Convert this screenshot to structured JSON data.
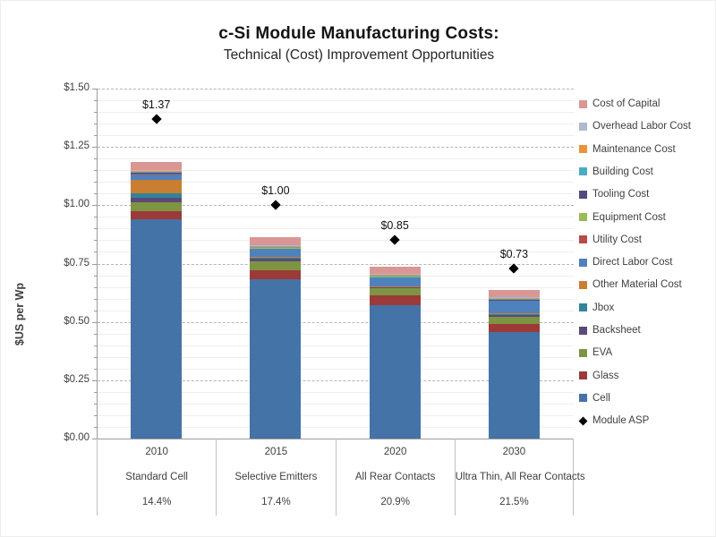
{
  "title": "c-Si Module Manufacturing Costs:",
  "subtitle": "Technical (Cost) Improvement Opportunities",
  "y_axis": {
    "title": "$US per Wp",
    "tick_labels": [
      "$0.00",
      "$0.25",
      "$0.50",
      "$0.75",
      "$1.00",
      "$1.25",
      "$1.50"
    ],
    "min": 0,
    "max": 1.5,
    "major_step": 0.25,
    "minor_step": 0.05
  },
  "chart_data": {
    "type": "bar",
    "subtype": "stacked-columns-with-diamond-markers",
    "title": "c-Si Module Manufacturing Costs: Technical (Cost) Improvement Opportunities",
    "ylabel": "$US per Wp",
    "ylim": [
      0,
      1.5
    ],
    "grid": {
      "major": "dashed",
      "minor": "solid",
      "legend_position": "right"
    },
    "categories": [
      {
        "year": "2010",
        "technology": "Standard Cell",
        "efficiency": "14.4%"
      },
      {
        "year": "2015",
        "technology": "Selective Emitters",
        "efficiency": "17.4%"
      },
      {
        "year": "2020",
        "technology": "All Rear Contacts",
        "efficiency": "20.9%"
      },
      {
        "year": "2030",
        "technology": "Ultra Thin, All Rear Contacts",
        "efficiency": "21.5%"
      }
    ],
    "series_bottom_to_top": [
      {
        "name": "Cell",
        "color": "#4473A7",
        "values": [
          0.939,
          0.683,
          0.57,
          0.457
        ]
      },
      {
        "name": "Glass",
        "color": "#9C3A38",
        "values": [
          0.037,
          0.038,
          0.042,
          0.035
        ]
      },
      {
        "name": "EVA",
        "color": "#7D9442",
        "values": [
          0.037,
          0.038,
          0.031,
          0.031
        ]
      },
      {
        "name": "Backsheet",
        "color": "#5B4A77",
        "values": [
          0.018,
          0.012,
          0.005,
          0.008
        ]
      },
      {
        "name": "Jbox",
        "color": "#31849B",
        "values": [
          0.019,
          0.004,
          0.003,
          0.004
        ]
      },
      {
        "name": "Other Material Cost",
        "color": "#C97E32",
        "values": [
          0.058,
          0.004,
          0.003,
          0.003
        ]
      },
      {
        "name": "Direct Labor Cost",
        "color": "#4F81BD",
        "values": [
          0.027,
          0.035,
          0.038,
          0.054
        ]
      },
      {
        "name": "Utility Cost",
        "color": "#B94A48",
        "values": [
          0.002,
          0.002,
          0.002,
          0.001
        ]
      },
      {
        "name": "Equipment Cost",
        "color": "#9ABB59",
        "values": [
          0.002,
          0.002,
          0.002,
          0.001
        ]
      },
      {
        "name": "Tooling Cost",
        "color": "#514A7D",
        "values": [
          0.002,
          0.002,
          0.002,
          0.002
        ]
      },
      {
        "name": "Building Cost",
        "color": "#4BACC6",
        "values": [
          0.002,
          0.002,
          0.002,
          0.003
        ]
      },
      {
        "name": "Maintenance Cost",
        "color": "#E8943A",
        "values": [
          0.003,
          0.003,
          0.002,
          0.003
        ]
      },
      {
        "name": "Overhead Labor Cost",
        "color": "#AEBAD1",
        "values": [
          0.004,
          0.004,
          0.003,
          0.005
        ]
      },
      {
        "name": "Cost of Capital",
        "color": "#D99694",
        "values": [
          0.035,
          0.033,
          0.031,
          0.031
        ]
      }
    ],
    "marker_series": {
      "name": "Module ASP",
      "color": "#000000",
      "values": [
        1.37,
        1.0,
        0.85,
        0.73
      ],
      "labels": [
        "$1.37",
        "$1.00",
        "$0.85",
        "$0.73"
      ]
    }
  }
}
